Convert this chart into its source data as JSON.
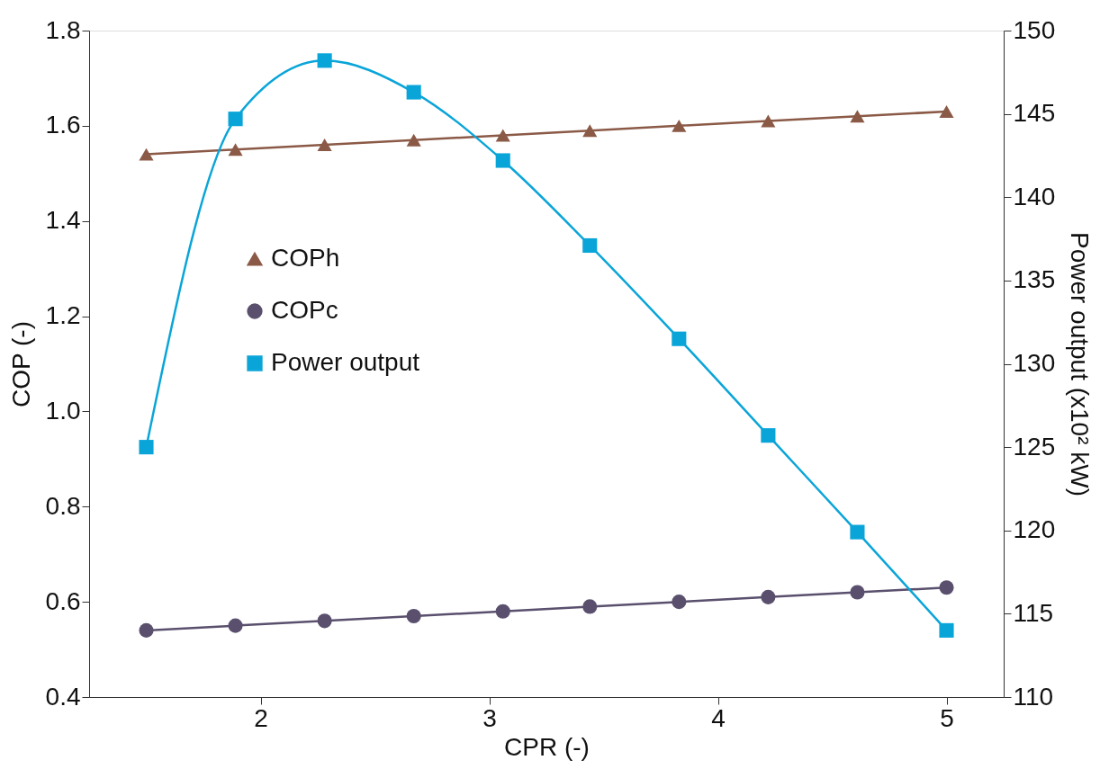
{
  "chart_data": {
    "type": "line",
    "xlabel": "CPR (-)",
    "ylabel": "COP (-)",
    "y2label": "Power output (x10² kW)",
    "x": [
      1.5,
      1.89,
      2.28,
      2.67,
      3.06,
      3.44,
      3.83,
      4.22,
      4.61,
      5.0
    ],
    "series": [
      {
        "name": "COPh",
        "color": "#8b5a47",
        "marker": "triangle",
        "values": [
          1.54,
          1.55,
          1.56,
          1.57,
          1.58,
          1.59,
          1.6,
          1.61,
          1.62,
          1.63
        ]
      },
      {
        "name": "COPc",
        "color": "#5a506e",
        "marker": "circle",
        "values": [
          0.54,
          0.55,
          0.56,
          0.57,
          0.58,
          0.59,
          0.6,
          0.61,
          0.62,
          0.63
        ]
      },
      {
        "name": "Power output",
        "color": "#0aa5d8",
        "marker": "square",
        "axis": "y2",
        "values": [
          125.0,
          144.7,
          148.2,
          146.3,
          142.2,
          137.1,
          131.5,
          125.7,
          119.9,
          114.0
        ]
      }
    ],
    "xlim": [
      1.25,
      5.25
    ],
    "xticks": [
      2,
      3,
      4,
      5
    ],
    "ylim": [
      0.4,
      1.8
    ],
    "yticks": [
      0.4,
      0.6,
      0.8,
      {
        "value": 1,
        "label": "1.0"
      },
      1.2,
      1.4,
      1.6,
      1.8
    ],
    "y2lim": [
      110,
      150
    ],
    "y2ticks": [
      110,
      115,
      120,
      125,
      130,
      135,
      140,
      145,
      150
    ],
    "legend": "left",
    "grid": false
  }
}
